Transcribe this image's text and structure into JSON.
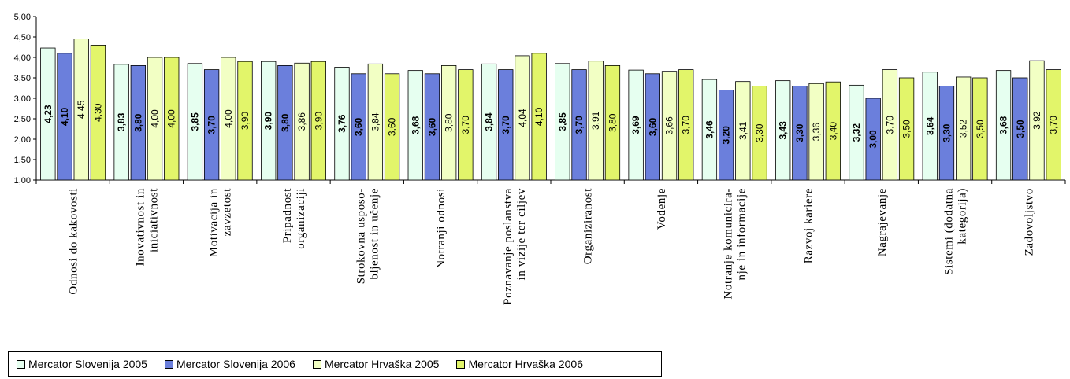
{
  "chart_data": {
    "type": "bar",
    "title": "",
    "xlabel": "",
    "ylabel": "",
    "ylim": [
      1.0,
      5.0
    ],
    "yticks": [
      "1,00",
      "1,50",
      "2,00",
      "2,50",
      "3,00",
      "3,50",
      "4,00",
      "4,50",
      "5,00"
    ],
    "grid": false,
    "legend_position": "bottom-left",
    "categories": [
      [
        "Odnosi do kakovosti"
      ],
      [
        "Inovativnost in",
        "iniciativnost"
      ],
      [
        "Motivacija in",
        "zavzetost"
      ],
      [
        "Pripadnost",
        "organizaciji"
      ],
      [
        "Strokovna usposo-",
        "bljenost in učenje"
      ],
      [
        "Notranji odnosi"
      ],
      [
        "Poznavanje poslanstva",
        "in vizije ter ciljev"
      ],
      [
        "Organiziranost"
      ],
      [
        "Vodenje"
      ],
      [
        "Notranje komunicira-",
        "nje in informacije"
      ],
      [
        "Razvoj kariere"
      ],
      [
        "Nagrajevanje"
      ],
      [
        "Sistemi (dodatna",
        "kategorija)"
      ],
      [
        "Zadovoljstvo"
      ]
    ],
    "series": [
      {
        "name": "Mercator Slovenija 2005",
        "color": "#e6fff0",
        "bold_labels": true,
        "values": [
          4.23,
          3.83,
          3.85,
          3.9,
          3.76,
          3.68,
          3.84,
          3.85,
          3.69,
          3.46,
          3.43,
          3.32,
          3.64,
          3.68
        ],
        "labels": [
          "4,23",
          "3,83",
          "3,85",
          "3,90",
          "3,76",
          "3,68",
          "3,84",
          "3,85",
          "3,69",
          "3,46",
          "3,43",
          "3,32",
          "3,64",
          "3,68"
        ]
      },
      {
        "name": "Mercator Slovenija 2006",
        "color": "#6b7fdc",
        "bold_labels": true,
        "values": [
          4.1,
          3.8,
          3.7,
          3.8,
          3.6,
          3.6,
          3.7,
          3.7,
          3.6,
          3.2,
          3.3,
          3.0,
          3.3,
          3.5
        ],
        "labels": [
          "4,10",
          "3,80",
          "3,70",
          "3,80",
          "3,60",
          "3,60",
          "3,70",
          "3,70",
          "3,60",
          "3,20",
          "3,30",
          "3,00",
          "3,30",
          "3,50"
        ]
      },
      {
        "name": "Mercator Hrvaška 2005",
        "color": "#f2ffc4",
        "bold_labels": false,
        "values": [
          4.45,
          4.0,
          4.0,
          3.86,
          3.84,
          3.8,
          4.04,
          3.91,
          3.66,
          3.41,
          3.36,
          3.7,
          3.52,
          3.92
        ],
        "labels": [
          "4,45",
          "4,00",
          "4,00",
          "3,86",
          "3,84",
          "3,80",
          "4,04",
          "3,91",
          "3,66",
          "3,41",
          "3,36",
          "3,70",
          "3,52",
          "3,92"
        ]
      },
      {
        "name": "Mercator Hrvaška 2006",
        "color": "#e2f56a",
        "bold_labels": false,
        "values": [
          4.3,
          4.0,
          3.9,
          3.9,
          3.6,
          3.7,
          4.1,
          3.8,
          3.7,
          3.3,
          3.4,
          3.5,
          3.5,
          3.7
        ],
        "labels": [
          "4,30",
          "4,00",
          "3,90",
          "3,90",
          "3,60",
          "3,70",
          "4,10",
          "3,80",
          "3,70",
          "3,30",
          "3,40",
          "3,50",
          "3,50",
          "3,70"
        ]
      }
    ]
  }
}
